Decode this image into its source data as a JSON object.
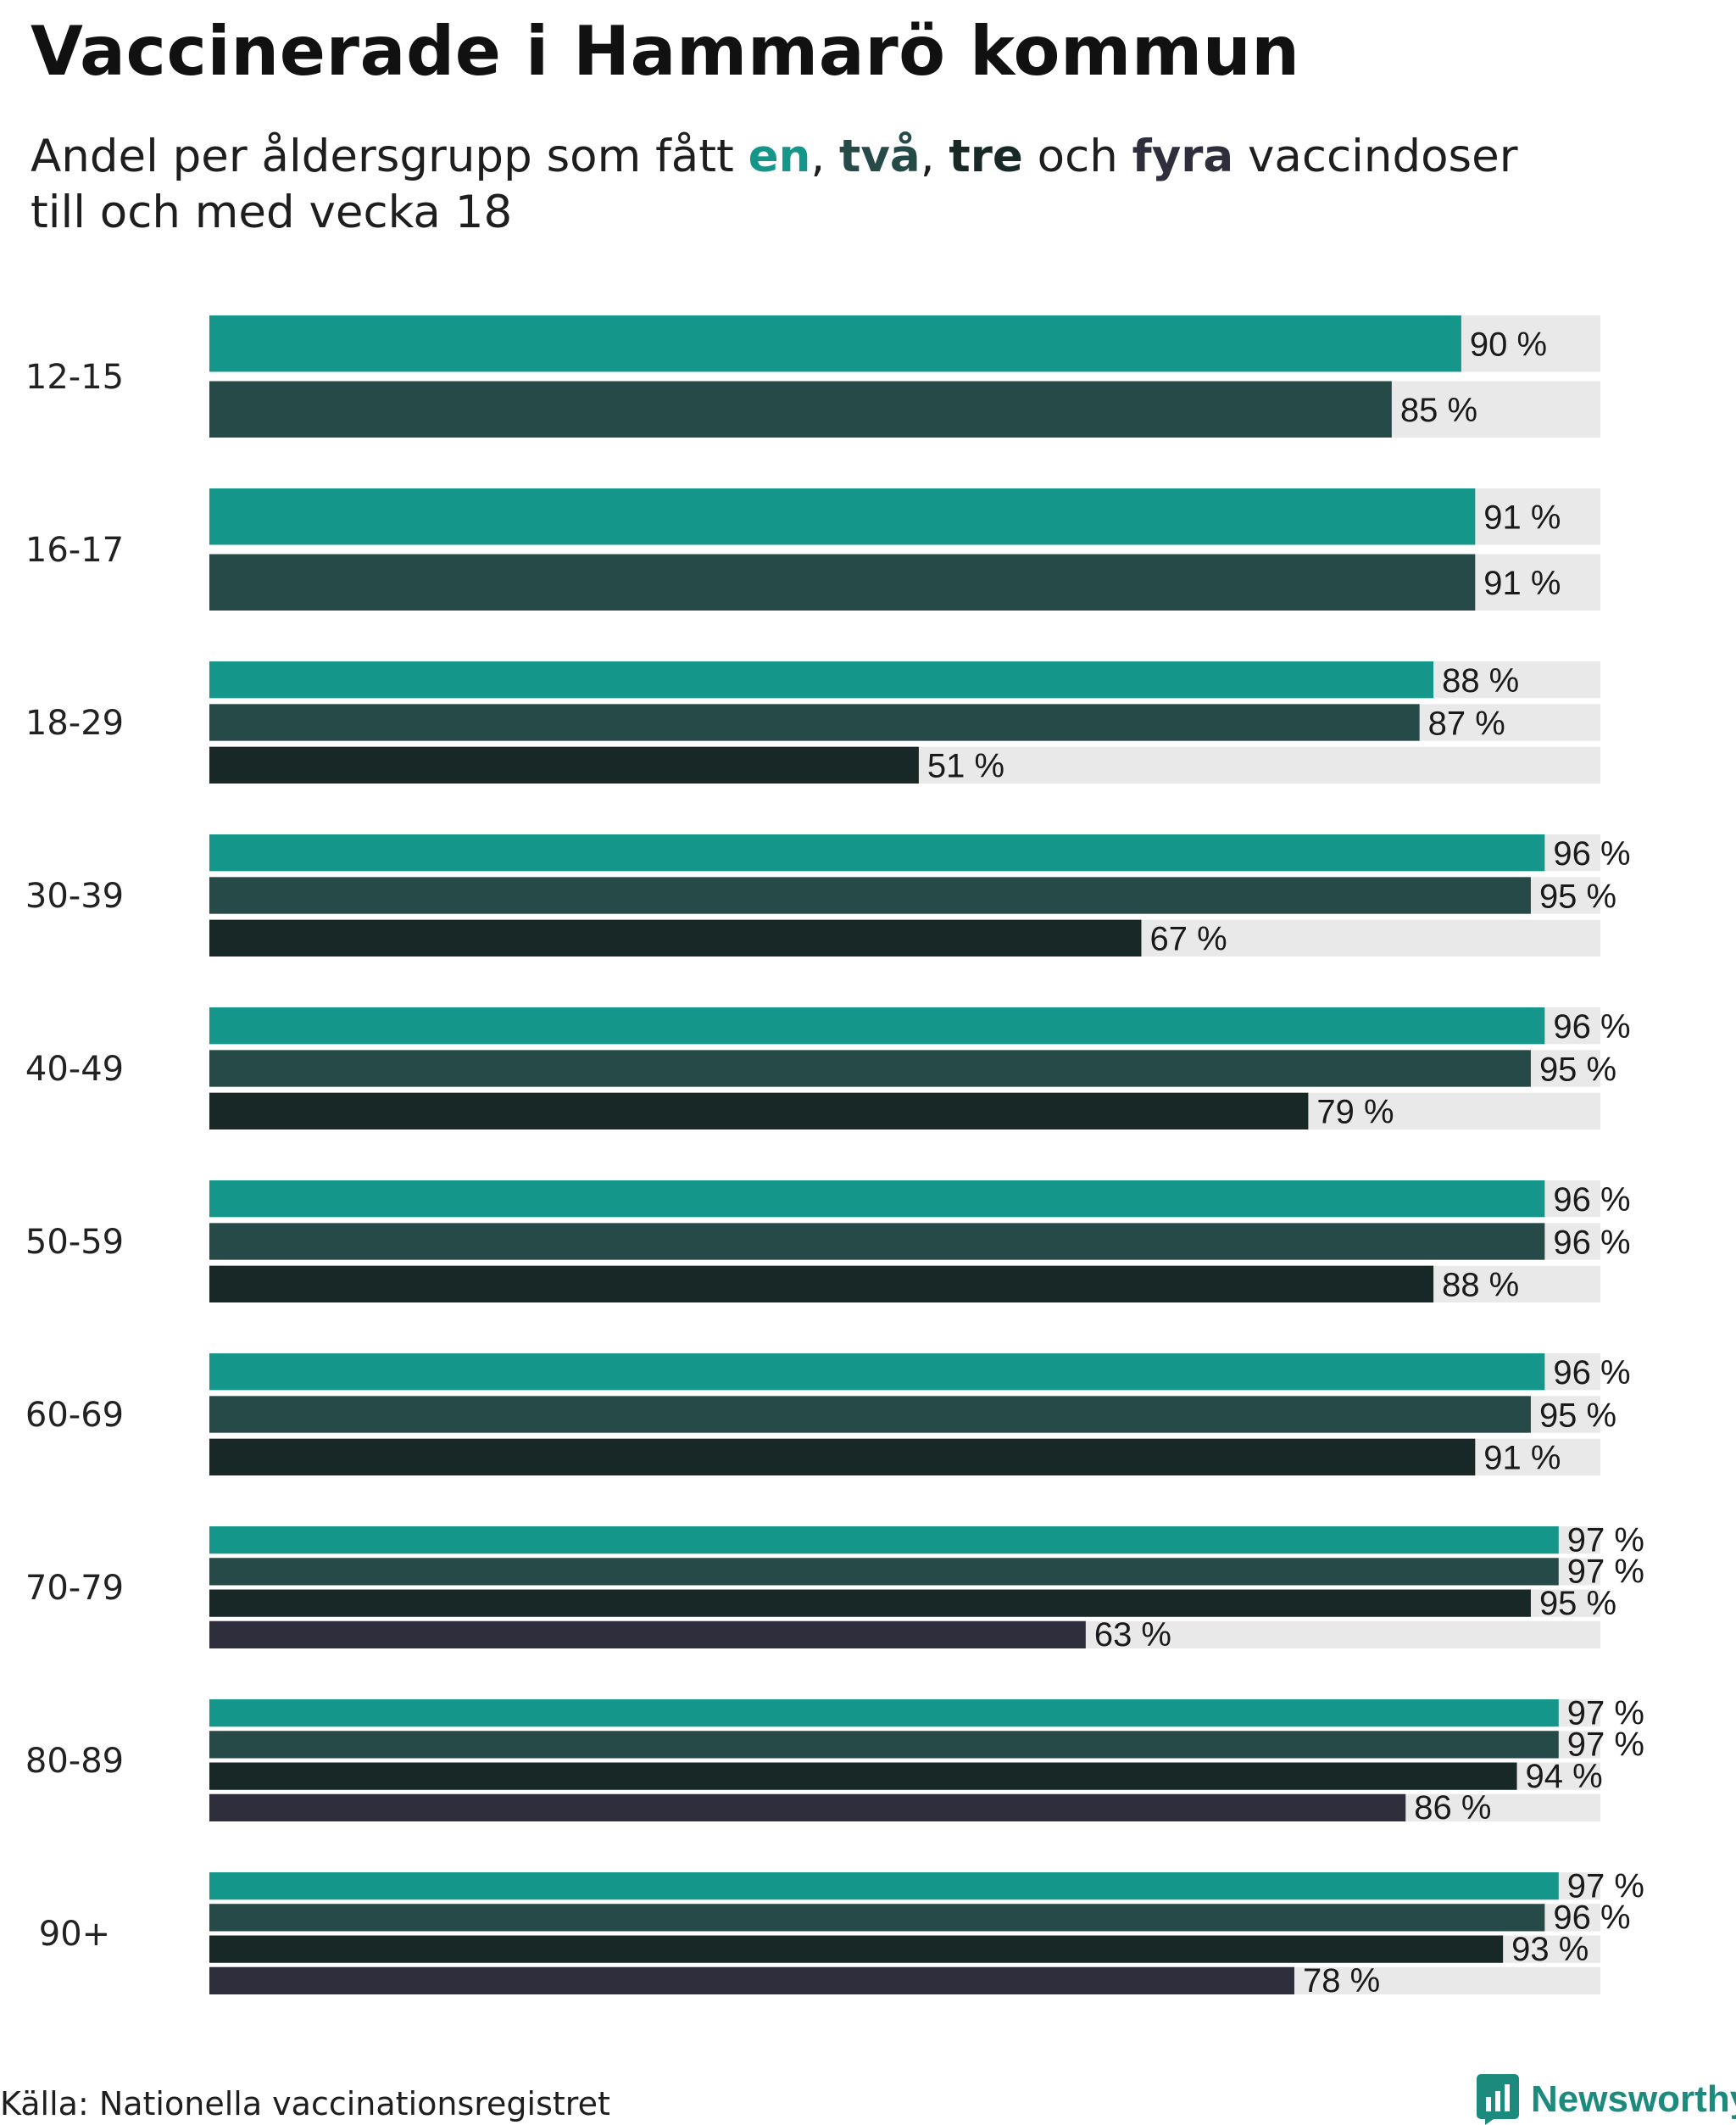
{
  "chart_data": {
    "type": "bar",
    "orientation": "horizontal",
    "title": "Vaccinerade i Hammarö kommun",
    "subtitle": {
      "prefix": "Andel per åldersgrupp som fått ",
      "sep1": ", ",
      "sep2": ", ",
      "sep3": " och ",
      "suffix": " vaccindoser",
      "line2": "till och med vecka 18"
    },
    "xlim": [
      0,
      100
    ],
    "value_suffix": " %",
    "series": [
      {
        "name": "en",
        "color": "#14968a"
      },
      {
        "name": "två",
        "color": "#264a48"
      },
      {
        "name": "tre",
        "color": "#182826"
      },
      {
        "name": "fyra",
        "color": "#2f2e3c"
      }
    ],
    "groups": [
      {
        "label": "12-15",
        "values": [
          90,
          85
        ]
      },
      {
        "label": "16-17",
        "values": [
          91,
          91
        ]
      },
      {
        "label": "18-29",
        "values": [
          88,
          87,
          51
        ]
      },
      {
        "label": "30-39",
        "values": [
          96,
          95,
          67
        ]
      },
      {
        "label": "40-49",
        "values": [
          96,
          95,
          79
        ]
      },
      {
        "label": "50-59",
        "values": [
          96,
          96,
          88
        ]
      },
      {
        "label": "60-69",
        "values": [
          96,
          95,
          91
        ]
      },
      {
        "label": "70-79",
        "values": [
          97,
          97,
          95,
          63
        ]
      },
      {
        "label": "80-89",
        "values": [
          97,
          97,
          94,
          86
        ]
      },
      {
        "label": "90+",
        "values": [
          97,
          96,
          93,
          78
        ]
      }
    ],
    "background_color": "#e9e9e9"
  },
  "footer": {
    "source": "Källa: Nationella vaccinationsregistret",
    "brand": "Newsworthy",
    "brand_color": "#1d8a7e"
  },
  "icons": {
    "brand_logo": "newsworthy-logo-icon"
  }
}
